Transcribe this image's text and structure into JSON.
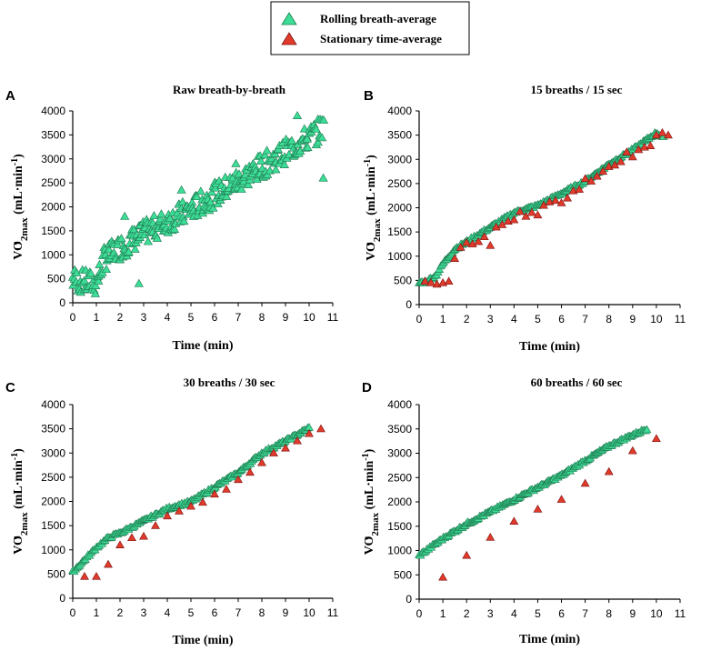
{
  "legend": {
    "entries": [
      {
        "label": "Rolling breath-average",
        "color": "#3ddc97"
      },
      {
        "label": "Stationary time-average",
        "color": "#e03a2a"
      }
    ]
  },
  "axes_common": {
    "xlabel": "Time (min)",
    "ylabel_prefix": "VO",
    "ylabel_sub": "2max",
    "ylabel_units": " (mL·min",
    "ylabel_exp": "-1",
    "ylabel_close": ")",
    "xlim": [
      0,
      11
    ],
    "ylim": [
      0,
      4000
    ],
    "xticks": [
      "0",
      "1",
      "2",
      "3",
      "4",
      "5",
      "6",
      "7",
      "8",
      "9",
      "10",
      "11"
    ],
    "yticks": [
      "0",
      "500",
      "1000",
      "1500",
      "2000",
      "2500",
      "3000",
      "3500",
      "4000"
    ]
  },
  "chart_data": [
    {
      "letter": "A",
      "type": "scatter",
      "title": "Raw breath-by-breath",
      "series": [
        {
          "name": "Rolling breath-average",
          "trend": [
            [
              0,
              500
            ],
            [
              0.5,
              430
            ],
            [
              1.0,
              400
            ],
            [
              1.3,
              900
            ],
            [
              2,
              1150
            ],
            [
              3,
              1450
            ],
            [
              4,
              1700
            ],
            [
              5,
              1950
            ],
            [
              6,
              2250
            ],
            [
              7,
              2550
            ],
            [
              8,
              2850
            ],
            [
              9,
              3150
            ],
            [
              10,
              3450
            ],
            [
              10.6,
              3650
            ]
          ],
          "extra": [
            [
              2.8,
              400
            ],
            [
              10.6,
              2600
            ],
            [
              6.9,
              2900
            ],
            [
              2.2,
              1800
            ],
            [
              4.6,
              2350
            ],
            [
              9.5,
              3900
            ]
          ]
        }
      ]
    },
    {
      "letter": "B",
      "type": "scatter",
      "title": "15 breaths / 15 sec",
      "series": [
        {
          "name": "Rolling breath-average",
          "trend": [
            [
              0,
              450
            ],
            [
              0.3,
              480
            ],
            [
              0.7,
              600
            ],
            [
              1.0,
              850
            ],
            [
              1.5,
              1150
            ],
            [
              2.0,
              1300
            ],
            [
              3,
              1600
            ],
            [
              4,
              1900
            ],
            [
              5,
              2050
            ],
            [
              6,
              2300
            ],
            [
              7,
              2550
            ],
            [
              8,
              2900
            ],
            [
              9,
              3200
            ],
            [
              10,
              3550
            ],
            [
              10.3,
              3450
            ]
          ]
        },
        {
          "name": "Stationary time-average",
          "points": [
            [
              0.25,
              480
            ],
            [
              0.5,
              450
            ],
            [
              0.75,
              420
            ],
            [
              1.0,
              450
            ],
            [
              1.25,
              480
            ],
            [
              1.5,
              950
            ],
            [
              1.75,
              1180
            ],
            [
              2.0,
              1280
            ],
            [
              2.25,
              1250
            ],
            [
              2.5,
              1300
            ],
            [
              2.75,
              1400
            ],
            [
              3.0,
              1220
            ],
            [
              3.25,
              1600
            ],
            [
              3.5,
              1650
            ],
            [
              3.75,
              1720
            ],
            [
              4.0,
              1750
            ],
            [
              4.25,
              1920
            ],
            [
              4.5,
              1820
            ],
            [
              4.75,
              1900
            ],
            [
              5.0,
              1850
            ],
            [
              5.25,
              2050
            ],
            [
              5.5,
              2120
            ],
            [
              5.75,
              2150
            ],
            [
              6.0,
              2100
            ],
            [
              6.25,
              2200
            ],
            [
              6.5,
              2350
            ],
            [
              6.75,
              2380
            ],
            [
              7.0,
              2600
            ],
            [
              7.25,
              2550
            ],
            [
              7.5,
              2650
            ],
            [
              7.75,
              2750
            ],
            [
              8.0,
              2850
            ],
            [
              8.25,
              2880
            ],
            [
              8.5,
              2950
            ],
            [
              8.75,
              3150
            ],
            [
              9.0,
              3050
            ],
            [
              9.25,
              3200
            ],
            [
              9.5,
              3250
            ],
            [
              9.75,
              3280
            ],
            [
              10.0,
              3500
            ],
            [
              10.25,
              3550
            ],
            [
              10.5,
              3500
            ]
          ]
        }
      ]
    },
    {
      "letter": "C",
      "type": "scatter",
      "title": "30 breaths / 30 sec",
      "series": [
        {
          "name": "Rolling breath-average",
          "trend": [
            [
              0,
              550
            ],
            [
              0.5,
              800
            ],
            [
              1.0,
              1050
            ],
            [
              1.5,
              1250
            ],
            [
              2,
              1350
            ],
            [
              3,
              1600
            ],
            [
              4,
              1850
            ],
            [
              5,
              2000
            ],
            [
              6,
              2300
            ],
            [
              7,
              2600
            ],
            [
              8,
              3000
            ],
            [
              9,
              3250
            ],
            [
              10,
              3520
            ]
          ]
        },
        {
          "name": "Stationary time-average",
          "points": [
            [
              0.5,
              450
            ],
            [
              1.0,
              450
            ],
            [
              1.5,
              700
            ],
            [
              2.0,
              1100
            ],
            [
              2.5,
              1250
            ],
            [
              3.0,
              1280
            ],
            [
              3.5,
              1500
            ],
            [
              4.0,
              1700
            ],
            [
              4.5,
              1800
            ],
            [
              5.0,
              1900
            ],
            [
              5.5,
              1980
            ],
            [
              6.0,
              2150
            ],
            [
              6.5,
              2250
            ],
            [
              7.0,
              2450
            ],
            [
              7.5,
              2600
            ],
            [
              8.0,
              2800
            ],
            [
              8.5,
              3000
            ],
            [
              9.0,
              3100
            ],
            [
              9.5,
              3250
            ],
            [
              10.0,
              3400
            ],
            [
              10.5,
              3500
            ]
          ]
        }
      ]
    },
    {
      "letter": "D",
      "type": "scatter",
      "title": "60 breaths / 60 sec",
      "series": [
        {
          "name": "Rolling breath-average",
          "trend": [
            [
              0,
              900
            ],
            [
              1,
              1250
            ],
            [
              2,
              1550
            ],
            [
              3,
              1800
            ],
            [
              4,
              2050
            ],
            [
              5,
              2300
            ],
            [
              6,
              2550
            ],
            [
              7,
              2850
            ],
            [
              8,
              3150
            ],
            [
              9,
              3380
            ],
            [
              9.6,
              3500
            ]
          ]
        },
        {
          "name": "Stationary time-average",
          "points": [
            [
              1,
              450
            ],
            [
              2,
              900
            ],
            [
              3,
              1270
            ],
            [
              4,
              1600
            ],
            [
              5,
              1850
            ],
            [
              6,
              2050
            ],
            [
              7,
              2380
            ],
            [
              8,
              2620
            ],
            [
              9,
              3050
            ],
            [
              10,
              3300
            ]
          ]
        }
      ]
    }
  ]
}
